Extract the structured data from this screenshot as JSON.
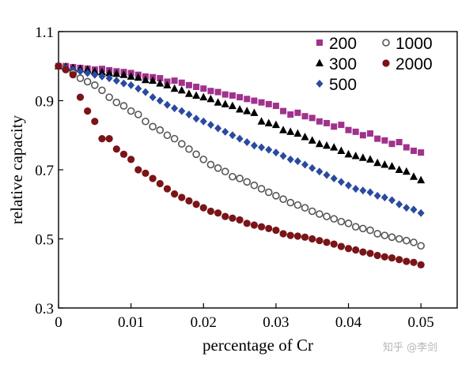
{
  "chart_data": {
    "type": "scatter",
    "title": "",
    "xlabel": "percentage of Cr",
    "ylabel": "relative capacity",
    "xlim": [
      0,
      0.055
    ],
    "ylim": [
      0.3,
      1.1
    ],
    "xticks": [
      0,
      0.01,
      0.02,
      0.03,
      0.04,
      0.05
    ],
    "xtick_labels": [
      "0",
      "0.01",
      "0.02",
      "0.03",
      "0.04",
      "0.05"
    ],
    "yticks": [
      0.3,
      0.5,
      0.7,
      0.9,
      1.1
    ],
    "ytick_labels": [
      "0.3",
      "0.5",
      "0.7",
      "0.9",
      "1.1"
    ],
    "grid": false,
    "legend_position": "top-right",
    "series": [
      {
        "name": "200",
        "marker": "square",
        "color": "#a0328c",
        "x": [
          0.0,
          0.001,
          0.002,
          0.003,
          0.004,
          0.005,
          0.006,
          0.007,
          0.008,
          0.009,
          0.01,
          0.011,
          0.012,
          0.013,
          0.014,
          0.015,
          0.016,
          0.017,
          0.018,
          0.019,
          0.02,
          0.021,
          0.022,
          0.023,
          0.024,
          0.025,
          0.026,
          0.027,
          0.028,
          0.029,
          0.03,
          0.031,
          0.032,
          0.033,
          0.034,
          0.035,
          0.036,
          0.037,
          0.038,
          0.039,
          0.04,
          0.041,
          0.042,
          0.043,
          0.044,
          0.045,
          0.046,
          0.047,
          0.048,
          0.049,
          0.05
        ],
        "y": [
          1.0,
          1.0,
          0.997,
          0.995,
          0.993,
          0.99,
          0.992,
          0.988,
          0.985,
          0.983,
          0.98,
          0.975,
          0.97,
          0.968,
          0.965,
          0.955,
          0.958,
          0.952,
          0.945,
          0.94,
          0.935,
          0.928,
          0.925,
          0.918,
          0.915,
          0.91,
          0.905,
          0.9,
          0.895,
          0.89,
          0.885,
          0.87,
          0.86,
          0.865,
          0.855,
          0.85,
          0.84,
          0.835,
          0.825,
          0.83,
          0.815,
          0.81,
          0.8,
          0.805,
          0.79,
          0.785,
          0.775,
          0.78,
          0.765,
          0.755,
          0.75
        ]
      },
      {
        "name": "300",
        "marker": "triangle",
        "color": "#000000",
        "x": [
          0.0,
          0.001,
          0.002,
          0.003,
          0.004,
          0.005,
          0.006,
          0.007,
          0.008,
          0.009,
          0.01,
          0.011,
          0.012,
          0.013,
          0.014,
          0.015,
          0.016,
          0.017,
          0.018,
          0.019,
          0.02,
          0.021,
          0.022,
          0.023,
          0.024,
          0.025,
          0.026,
          0.027,
          0.028,
          0.029,
          0.03,
          0.031,
          0.032,
          0.033,
          0.034,
          0.035,
          0.036,
          0.037,
          0.038,
          0.039,
          0.04,
          0.041,
          0.042,
          0.043,
          0.044,
          0.045,
          0.046,
          0.047,
          0.048,
          0.049,
          0.05
        ],
        "y": [
          1.0,
          0.998,
          0.995,
          0.992,
          0.99,
          0.985,
          0.983,
          0.98,
          0.978,
          0.975,
          0.97,
          0.967,
          0.96,
          0.958,
          0.95,
          0.945,
          0.935,
          0.93,
          0.92,
          0.915,
          0.91,
          0.905,
          0.895,
          0.89,
          0.885,
          0.875,
          0.87,
          0.865,
          0.84,
          0.835,
          0.83,
          0.815,
          0.81,
          0.805,
          0.795,
          0.785,
          0.775,
          0.77,
          0.765,
          0.755,
          0.745,
          0.74,
          0.735,
          0.73,
          0.72,
          0.715,
          0.71,
          0.7,
          0.695,
          0.68,
          0.67
        ]
      },
      {
        "name": "500",
        "marker": "diamond",
        "color": "#2a4aa0",
        "x": [
          0.0,
          0.001,
          0.002,
          0.003,
          0.004,
          0.005,
          0.006,
          0.007,
          0.008,
          0.009,
          0.01,
          0.011,
          0.012,
          0.013,
          0.014,
          0.015,
          0.016,
          0.017,
          0.018,
          0.019,
          0.02,
          0.021,
          0.022,
          0.023,
          0.024,
          0.025,
          0.026,
          0.027,
          0.028,
          0.029,
          0.03,
          0.031,
          0.032,
          0.033,
          0.034,
          0.035,
          0.036,
          0.037,
          0.038,
          0.039,
          0.04,
          0.041,
          0.042,
          0.043,
          0.044,
          0.045,
          0.046,
          0.047,
          0.048,
          0.049,
          0.05
        ],
        "y": [
          1.0,
          0.995,
          0.99,
          0.985,
          0.98,
          0.975,
          0.97,
          0.965,
          0.958,
          0.95,
          0.945,
          0.935,
          0.925,
          0.91,
          0.9,
          0.888,
          0.878,
          0.87,
          0.86,
          0.848,
          0.84,
          0.83,
          0.82,
          0.81,
          0.8,
          0.79,
          0.78,
          0.77,
          0.765,
          0.758,
          0.75,
          0.74,
          0.73,
          0.725,
          0.715,
          0.705,
          0.695,
          0.685,
          0.675,
          0.665,
          0.655,
          0.645,
          0.64,
          0.635,
          0.625,
          0.62,
          0.612,
          0.6,
          0.59,
          0.585,
          0.575
        ]
      },
      {
        "name": "1000",
        "marker": "circle-open",
        "color": "#555555",
        "x": [
          0.0,
          0.001,
          0.002,
          0.003,
          0.004,
          0.005,
          0.006,
          0.007,
          0.008,
          0.009,
          0.01,
          0.011,
          0.012,
          0.013,
          0.014,
          0.015,
          0.016,
          0.017,
          0.018,
          0.019,
          0.02,
          0.021,
          0.022,
          0.023,
          0.024,
          0.025,
          0.026,
          0.027,
          0.028,
          0.029,
          0.03,
          0.031,
          0.032,
          0.033,
          0.034,
          0.035,
          0.036,
          0.037,
          0.038,
          0.039,
          0.04,
          0.041,
          0.042,
          0.043,
          0.044,
          0.045,
          0.046,
          0.047,
          0.048,
          0.049,
          0.05
        ],
        "y": [
          1.0,
          0.99,
          0.98,
          0.965,
          0.955,
          0.945,
          0.93,
          0.91,
          0.895,
          0.885,
          0.87,
          0.86,
          0.84,
          0.825,
          0.815,
          0.8,
          0.79,
          0.775,
          0.76,
          0.745,
          0.73,
          0.715,
          0.705,
          0.695,
          0.68,
          0.675,
          0.665,
          0.655,
          0.645,
          0.635,
          0.625,
          0.615,
          0.605,
          0.598,
          0.59,
          0.58,
          0.572,
          0.565,
          0.558,
          0.55,
          0.545,
          0.535,
          0.53,
          0.525,
          0.515,
          0.51,
          0.505,
          0.5,
          0.495,
          0.49,
          0.48
        ]
      },
      {
        "name": "2000",
        "marker": "circle-filled",
        "color": "#7a1418",
        "x": [
          0.0,
          0.001,
          0.002,
          0.003,
          0.004,
          0.005,
          0.006,
          0.007,
          0.008,
          0.009,
          0.01,
          0.011,
          0.012,
          0.013,
          0.014,
          0.015,
          0.016,
          0.017,
          0.018,
          0.019,
          0.02,
          0.021,
          0.022,
          0.023,
          0.024,
          0.025,
          0.026,
          0.027,
          0.028,
          0.029,
          0.03,
          0.031,
          0.032,
          0.033,
          0.034,
          0.035,
          0.036,
          0.037,
          0.038,
          0.039,
          0.04,
          0.041,
          0.042,
          0.043,
          0.044,
          0.045,
          0.046,
          0.047,
          0.048,
          0.049,
          0.05
        ],
        "y": [
          1.0,
          0.99,
          0.975,
          0.91,
          0.87,
          0.84,
          0.79,
          0.79,
          0.76,
          0.745,
          0.73,
          0.7,
          0.69,
          0.675,
          0.66,
          0.645,
          0.63,
          0.62,
          0.61,
          0.6,
          0.59,
          0.58,
          0.575,
          0.565,
          0.56,
          0.555,
          0.545,
          0.54,
          0.535,
          0.53,
          0.525,
          0.515,
          0.51,
          0.508,
          0.505,
          0.5,
          0.495,
          0.49,
          0.485,
          0.478,
          0.472,
          0.468,
          0.462,
          0.458,
          0.452,
          0.448,
          0.445,
          0.44,
          0.435,
          0.432,
          0.425
        ]
      }
    ]
  },
  "watermark": {
    "text": "知乎 @李剑"
  }
}
